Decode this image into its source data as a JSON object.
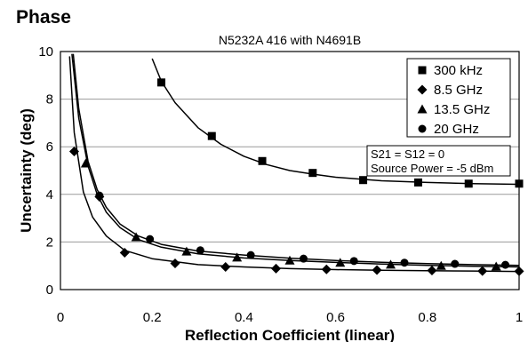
{
  "page": {
    "title": "Phase"
  },
  "chart_data": {
    "type": "scatter",
    "subtitle": "N5232A 416 with N4691B",
    "xlabel": "Reflection Coefficient (linear)",
    "ylabel": "Uncertainty (deg)",
    "xlim": [
      0,
      1
    ],
    "ylim": [
      0,
      10
    ],
    "xticks": [
      0,
      0.2,
      0.4,
      0.6,
      0.8,
      1
    ],
    "xtick_labels": [
      "0",
      "0.2",
      "0.4",
      "0.6",
      "0.8",
      "1"
    ],
    "yticks": [
      0,
      2,
      4,
      6,
      8,
      10
    ],
    "ytick_labels": [
      "0",
      "2",
      "4",
      "6",
      "8",
      "10"
    ],
    "grid": "horizontal",
    "legend_position": "top-right",
    "annotations": [
      "S21 = S12 = 0",
      "Source Power = -5 dBm"
    ],
    "series": [
      {
        "name": "300 kHz",
        "marker": "square",
        "x": [
          0.22,
          0.33,
          0.44,
          0.55,
          0.66,
          0.78,
          0.89,
          1.0
        ],
        "y": [
          8.7,
          6.45,
          5.4,
          4.9,
          4.6,
          4.5,
          4.45,
          4.45
        ],
        "curve": [
          [
            0.2,
            9.7
          ],
          [
            0.22,
            8.75
          ],
          [
            0.25,
            7.85
          ],
          [
            0.3,
            6.8
          ],
          [
            0.35,
            6.1
          ],
          [
            0.4,
            5.6
          ],
          [
            0.45,
            5.25
          ],
          [
            0.5,
            5.0
          ],
          [
            0.55,
            4.85
          ],
          [
            0.6,
            4.72
          ],
          [
            0.7,
            4.57
          ],
          [
            0.8,
            4.5
          ],
          [
            0.9,
            4.45
          ],
          [
            1.0,
            4.42
          ]
        ]
      },
      {
        "name": "8.5 GHz",
        "marker": "diamond",
        "x": [
          0.03,
          0.085,
          0.14,
          0.25,
          0.36,
          0.47,
          0.58,
          0.69,
          0.81,
          0.92,
          1.0
        ],
        "y": [
          5.8,
          3.9,
          1.55,
          1.1,
          0.95,
          0.88,
          0.85,
          0.82,
          0.8,
          0.78,
          0.77
        ],
        "curve": [
          [
            0.02,
            9.8
          ],
          [
            0.03,
            6.6
          ],
          [
            0.05,
            4.1
          ],
          [
            0.07,
            3.05
          ],
          [
            0.1,
            2.25
          ],
          [
            0.14,
            1.65
          ],
          [
            0.2,
            1.3
          ],
          [
            0.3,
            1.05
          ],
          [
            0.4,
            0.95
          ],
          [
            0.5,
            0.88
          ],
          [
            0.6,
            0.84
          ],
          [
            0.7,
            0.81
          ],
          [
            0.8,
            0.79
          ],
          [
            0.9,
            0.78
          ],
          [
            1.0,
            0.76
          ]
        ]
      },
      {
        "name": "13.5 GHz",
        "marker": "triangle",
        "x": [
          0.055,
          0.165,
          0.275,
          0.385,
          0.5,
          0.61,
          0.72,
          0.83,
          0.95
        ],
        "y": [
          5.3,
          2.2,
          1.6,
          1.35,
          1.22,
          1.13,
          1.05,
          1.0,
          0.97
        ],
        "curve": [
          [
            0.025,
            9.9
          ],
          [
            0.04,
            7.2
          ],
          [
            0.06,
            5.2
          ],
          [
            0.08,
            4.0
          ],
          [
            0.1,
            3.25
          ],
          [
            0.13,
            2.6
          ],
          [
            0.17,
            2.1
          ],
          [
            0.22,
            1.78
          ],
          [
            0.3,
            1.5
          ],
          [
            0.4,
            1.33
          ],
          [
            0.5,
            1.22
          ],
          [
            0.6,
            1.14
          ],
          [
            0.7,
            1.07
          ],
          [
            0.8,
            1.02
          ],
          [
            0.9,
            0.98
          ],
          [
            1.0,
            0.95
          ]
        ]
      },
      {
        "name": "20 GHz",
        "marker": "circle",
        "x": [
          0.085,
          0.195,
          0.305,
          0.415,
          0.53,
          0.64,
          0.75,
          0.86,
          0.97
        ],
        "y": [
          3.95,
          2.12,
          1.65,
          1.45,
          1.3,
          1.2,
          1.13,
          1.08,
          1.04
        ],
        "curve": [
          [
            0.028,
            9.9
          ],
          [
            0.04,
            7.6
          ],
          [
            0.06,
            5.4
          ],
          [
            0.08,
            4.2
          ],
          [
            0.1,
            3.45
          ],
          [
            0.13,
            2.75
          ],
          [
            0.17,
            2.25
          ],
          [
            0.22,
            1.9
          ],
          [
            0.3,
            1.62
          ],
          [
            0.4,
            1.45
          ],
          [
            0.5,
            1.32
          ],
          [
            0.6,
            1.22
          ],
          [
            0.7,
            1.15
          ],
          [
            0.8,
            1.09
          ],
          [
            0.9,
            1.05
          ],
          [
            1.0,
            1.02
          ]
        ]
      }
    ]
  }
}
